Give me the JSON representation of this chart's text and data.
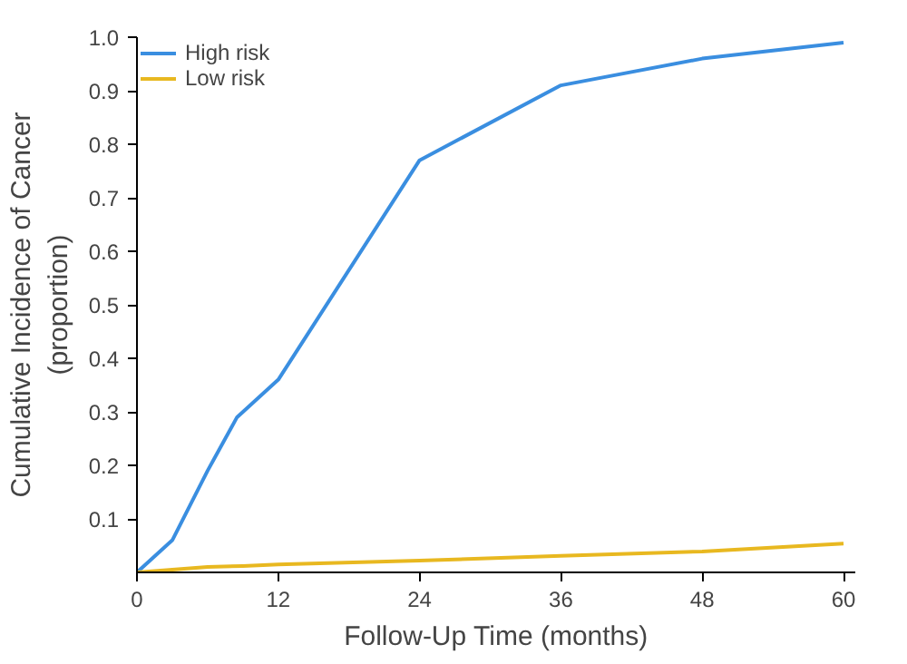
{
  "chart_data": {
    "type": "line",
    "xlabel": "Follow-Up Time (months)",
    "ylabel": "Cumulative Incidence of Cancer\n(proportion)",
    "xlim": [
      0,
      61
    ],
    "xticks": [
      0,
      12,
      24,
      36,
      48,
      60
    ],
    "ylim": [
      0,
      1.0
    ],
    "yticks": [
      0.1,
      0.2,
      0.3,
      0.4,
      0.5,
      0.6,
      0.7,
      0.8,
      0.9,
      {
        "value": 1,
        "label": "1.0"
      }
    ],
    "grid": false,
    "legend": "top left",
    "marker": "none",
    "line_style": "solid",
    "series": [
      {
        "name": "High risk",
        "color": "#3a8ee0",
        "x": [
          0,
          3,
          6,
          8.5,
          12,
          24,
          36,
          48,
          60
        ],
        "values": [
          0,
          0.06,
          0.19,
          0.29,
          0.36,
          0.77,
          0.91,
          0.96,
          0.99
        ]
      },
      {
        "name": "Low risk",
        "color": "#e8b820",
        "x": [
          0,
          6,
          9,
          12,
          24,
          36,
          48,
          60
        ],
        "values": [
          0,
          0.01,
          0.012,
          0.015,
          0.022,
          0.031,
          0.039,
          0.054
        ]
      }
    ]
  }
}
